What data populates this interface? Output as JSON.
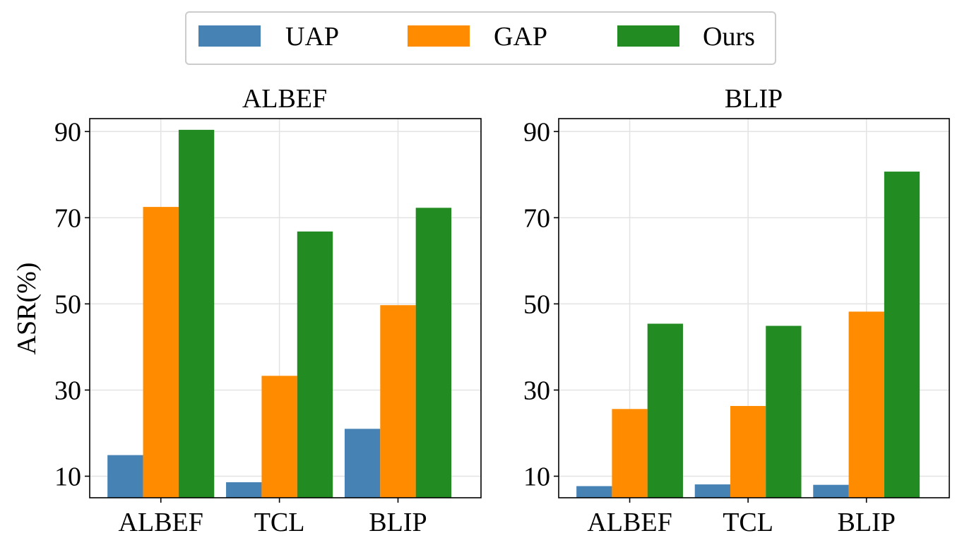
{
  "legend": {
    "items": [
      {
        "label": "UAP",
        "color": "#4682b4"
      },
      {
        "label": "GAP",
        "color": "#ff8c00"
      },
      {
        "label": "Ours",
        "color": "#228b22"
      }
    ]
  },
  "ylabel": "ASR(%)",
  "chart_data": [
    {
      "type": "bar",
      "title": "ALBEF",
      "categories": [
        "ALBEF",
        "TCL",
        "BLIP"
      ],
      "series": [
        {
          "name": "UAP",
          "values": [
            14.9,
            8.6,
            21.0
          ]
        },
        {
          "name": "GAP",
          "values": [
            72.5,
            33.3,
            49.7
          ]
        },
        {
          "name": "Ours",
          "values": [
            90.4,
            66.8,
            72.3
          ]
        }
      ],
      "ylabel": "ASR(%)",
      "ylim": [
        5,
        93
      ],
      "yticks": [
        "10",
        "30",
        "50",
        "70",
        "90"
      ],
      "grid": true,
      "legend": "top-center"
    },
    {
      "type": "bar",
      "title": "BLIP",
      "categories": [
        "ALBEF",
        "TCL",
        "BLIP"
      ],
      "series": [
        {
          "name": "UAP",
          "values": [
            7.7,
            8.1,
            8.0
          ]
        },
        {
          "name": "GAP",
          "values": [
            25.6,
            26.3,
            48.2
          ]
        },
        {
          "name": "Ours",
          "values": [
            45.4,
            44.9,
            80.7
          ]
        }
      ],
      "ylim": [
        5,
        93
      ],
      "yticks": [
        "10",
        "30",
        "50",
        "70",
        "90"
      ],
      "grid": true,
      "legend": "top-center"
    }
  ]
}
